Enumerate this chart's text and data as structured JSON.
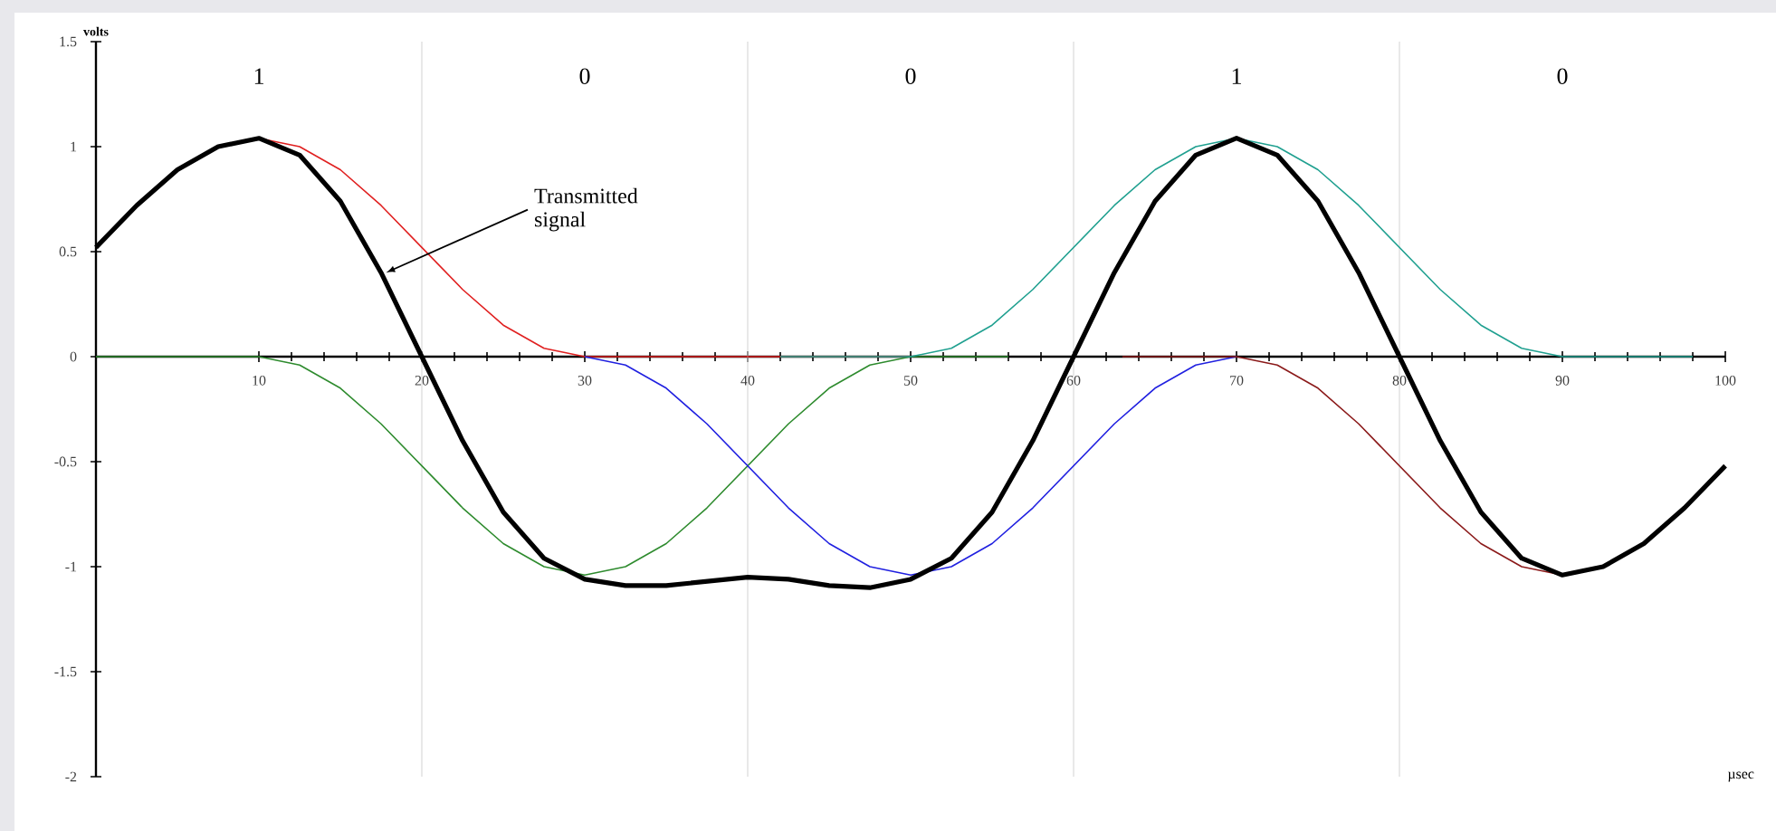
{
  "chart_data": {
    "type": "line",
    "xlabel": "µsec",
    "ylabel": "volts",
    "xlim": [
      0,
      100
    ],
    "ylim": [
      -2,
      1.5
    ],
    "xticks": [
      10,
      20,
      30,
      40,
      50,
      60,
      70,
      80,
      90,
      100
    ],
    "yticks": [
      -2,
      -1.5,
      -1,
      -0.5,
      0,
      0.5,
      1,
      1.5
    ],
    "ref_lines": [
      {
        "axis": "x",
        "value": 20,
        "color": "#d9d9d9"
      },
      {
        "axis": "x",
        "value": 40,
        "color": "#d9d9d9"
      },
      {
        "axis": "x",
        "value": 60,
        "color": "#d9d9d9"
      },
      {
        "axis": "x",
        "value": 80,
        "color": "#d9d9d9"
      }
    ],
    "annotations": [
      "1",
      "0",
      "0",
      "1",
      "0"
    ],
    "series": [
      {
        "color": "#e02020",
        "x": [
          7.5,
          10,
          12.5,
          15,
          17.5,
          20,
          22.5,
          25,
          27.5,
          30,
          50
        ],
        "values": [
          1.0,
          1.04,
          1.0,
          0.89,
          0.72,
          0.52,
          0.32,
          0.15,
          0.04,
          0,
          0
        ]
      },
      {
        "color": "#2e8b2e",
        "x": [
          0,
          10,
          12.5,
          15,
          17.5,
          20,
          22.5,
          25,
          27.5,
          30,
          32.5,
          35,
          37.5,
          40,
          42.5,
          45,
          47.5,
          50,
          56
        ],
        "values": [
          0,
          0,
          -0.04,
          -0.15,
          -0.32,
          -0.52,
          -0.72,
          -0.89,
          -1.0,
          -1.04,
          -1.0,
          -0.89,
          -0.72,
          -0.52,
          -0.32,
          -0.15,
          -0.04,
          0,
          0
        ]
      },
      {
        "color": "#2020e0",
        "x": [
          30,
          32.5,
          35,
          37.5,
          40,
          42.5,
          45,
          47.5,
          50,
          52.5,
          55,
          57.5,
          60,
          62.5,
          65,
          67.5,
          70
        ],
        "values": [
          0,
          -0.04,
          -0.15,
          -0.32,
          -0.52,
          -0.72,
          -0.89,
          -1.0,
          -1.04,
          -1.0,
          -0.89,
          -0.72,
          -0.52,
          -0.32,
          -0.15,
          -0.04,
          0
        ]
      },
      {
        "color": "#20a090",
        "x": [
          42,
          50,
          52.5,
          55,
          57.5,
          60,
          62.5,
          65,
          67.5,
          70,
          72.5,
          75,
          77.5,
          80,
          82.5,
          85,
          87.5,
          90,
          98
        ],
        "values": [
          0,
          0,
          0.04,
          0.15,
          0.32,
          0.52,
          0.72,
          0.89,
          1.0,
          1.04,
          1.0,
          0.89,
          0.72,
          0.52,
          0.32,
          0.15,
          0.04,
          0,
          0
        ]
      },
      {
        "color": "#8b1a1a",
        "x": [
          63,
          70,
          72.5,
          75,
          77.5,
          80,
          82.5,
          85,
          87.5,
          90,
          92.5
        ],
        "values": [
          0,
          0,
          -0.04,
          -0.15,
          -0.32,
          -0.52,
          -0.72,
          -0.89,
          -1.0,
          -1.04,
          -1.0
        ]
      },
      {
        "name": "Transmitted signal",
        "color": "#000000",
        "x": [
          0,
          2.5,
          5,
          7.5,
          10,
          12.5,
          15,
          17.5,
          20,
          22.5,
          25,
          27.5,
          30,
          32.5,
          35,
          37.5,
          40,
          42.5,
          45,
          47.5,
          50,
          52.5,
          55,
          57.5,
          60,
          62.5,
          65,
          67.5,
          70,
          72.5,
          75,
          77.5,
          80,
          82.5,
          85,
          87.5,
          90,
          92.5,
          95,
          97.5,
          100
        ],
        "values": [
          0.52,
          0.72,
          0.89,
          1.0,
          1.04,
          0.96,
          0.74,
          0.4,
          0,
          -0.4,
          -0.74,
          -0.96,
          -1.06,
          -1.09,
          -1.09,
          -1.07,
          -1.05,
          -1.06,
          -1.09,
          -1.1,
          -1.06,
          -0.96,
          -0.74,
          -0.4,
          0,
          0.4,
          0.74,
          0.96,
          1.04,
          0.96,
          0.74,
          0.4,
          0,
          -0.4,
          -0.74,
          -0.96,
          -1.04,
          -1.0,
          -0.89,
          -0.72,
          -0.52
        ]
      }
    ]
  }
}
